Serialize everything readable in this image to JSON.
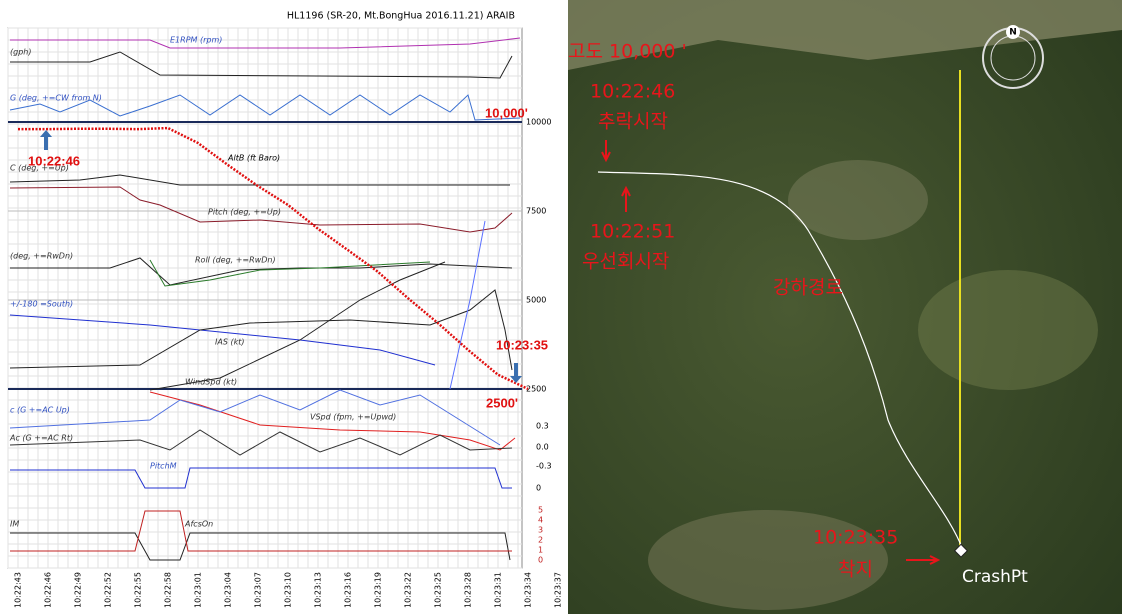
{
  "chart_data": {
    "type": "line",
    "title": "HL1196 (SR-20, Mt.BongHua 2016.11.21)   ARAIB",
    "x": [
      "10:22:43",
      "10:22:46",
      "10:22:49",
      "10:22:52",
      "10:22:55",
      "10:22:58",
      "10:23:01",
      "10:23:04",
      "10:23:07",
      "10:23:10",
      "10:23:13",
      "10:23:16",
      "10:23:19",
      "10:23:22",
      "10:23:25",
      "10:23:28",
      "10:23:31",
      "10:23:34",
      "10:23:37"
    ],
    "series": [
      {
        "name": "AltB (ft Baro)",
        "color": "#e01010",
        "values": [
          9800,
          9800,
          9810,
          9810,
          9800,
          9830,
          9410,
          8790,
          8200,
          7670,
          7000,
          6400,
          5790,
          5050,
          4350,
          3600,
          2900,
          2500,
          null
        ]
      }
    ],
    "ylim": [
      2500,
      10000
    ],
    "yticks": [
      2500,
      5000,
      7500,
      10000
    ],
    "grid": true,
    "trace_labels": [
      "E1RPM (rpm)",
      "(gph)",
      "G (deg, +=CW from N)",
      "C (deg, +=Up)",
      "Pitch (deg, +=Up)",
      "(deg, +=RwDn)",
      "Roll (deg, +=RwDn)",
      "+/-180 =South)",
      "IAS (kt)",
      "WindSpd (kt)",
      "c (G +=AC Up)",
      "VSpd (fpm, +=Upwd)",
      "Ac (G +=AC Rt)",
      "PitchM",
      "IM",
      "AfcsOn"
    ],
    "g_axis_ticks": [
      "0.3",
      "0.0",
      "-0.3",
      "0"
    ],
    "afcs_axis_ticks": [
      "5",
      "4",
      "3",
      "2",
      "1",
      "0"
    ],
    "annotations": [
      "10,000'",
      "10:22:46",
      "10:23:35",
      "2500'"
    ]
  },
  "map": {
    "labels": [
      "고도 10,000 '",
      "10:22:46",
      "추락시작",
      "10:22:51",
      "우선회시작",
      "강하경로",
      "10:23:35",
      "착지"
    ],
    "crash_point": "CrashPt",
    "compass": "N"
  }
}
